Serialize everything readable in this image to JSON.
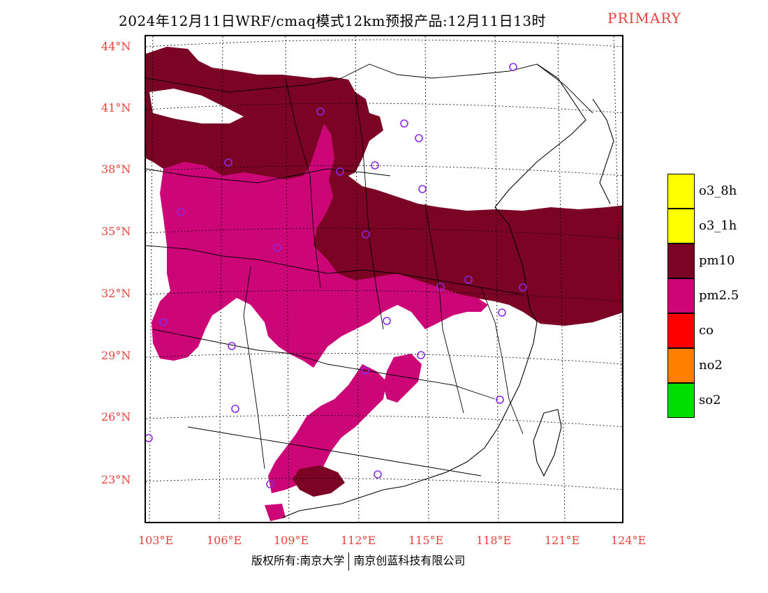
{
  "title": {
    "main": "2024年12月11日WRF/cmaq模式12km预报产品:12月11日13时",
    "tag": "PRIMARY"
  },
  "lat_labels": [
    "44°N",
    "41°N",
    "38°N",
    "35°N",
    "32°N",
    "29°N",
    "26°N",
    "23°N"
  ],
  "lon_labels": [
    "103°E",
    "106°E",
    "109°E",
    "112°E",
    "115°E",
    "118°E",
    "121°E",
    "124°E"
  ],
  "legend": [
    {
      "label": "o3_8h",
      "color": "#ffff00"
    },
    {
      "label": "o3_1h",
      "color": "#ffff00"
    },
    {
      "label": "pm10",
      "color": "#7b0425"
    },
    {
      "label": "pm2.5",
      "color": "#cc0677"
    },
    {
      "label": "co",
      "color": "#ff0000"
    },
    {
      "label": "no2",
      "color": "#ff7f00"
    },
    {
      "label": "so2",
      "color": "#00dd00"
    }
  ],
  "colors": {
    "pm10": "#7b0425",
    "pm25": "#cc0677",
    "label": "#e8413c",
    "station": "#8a2be2"
  },
  "footer": {
    "left": "版权所有:南京大学",
    "right": "南京创蓝科技有限公司"
  }
}
